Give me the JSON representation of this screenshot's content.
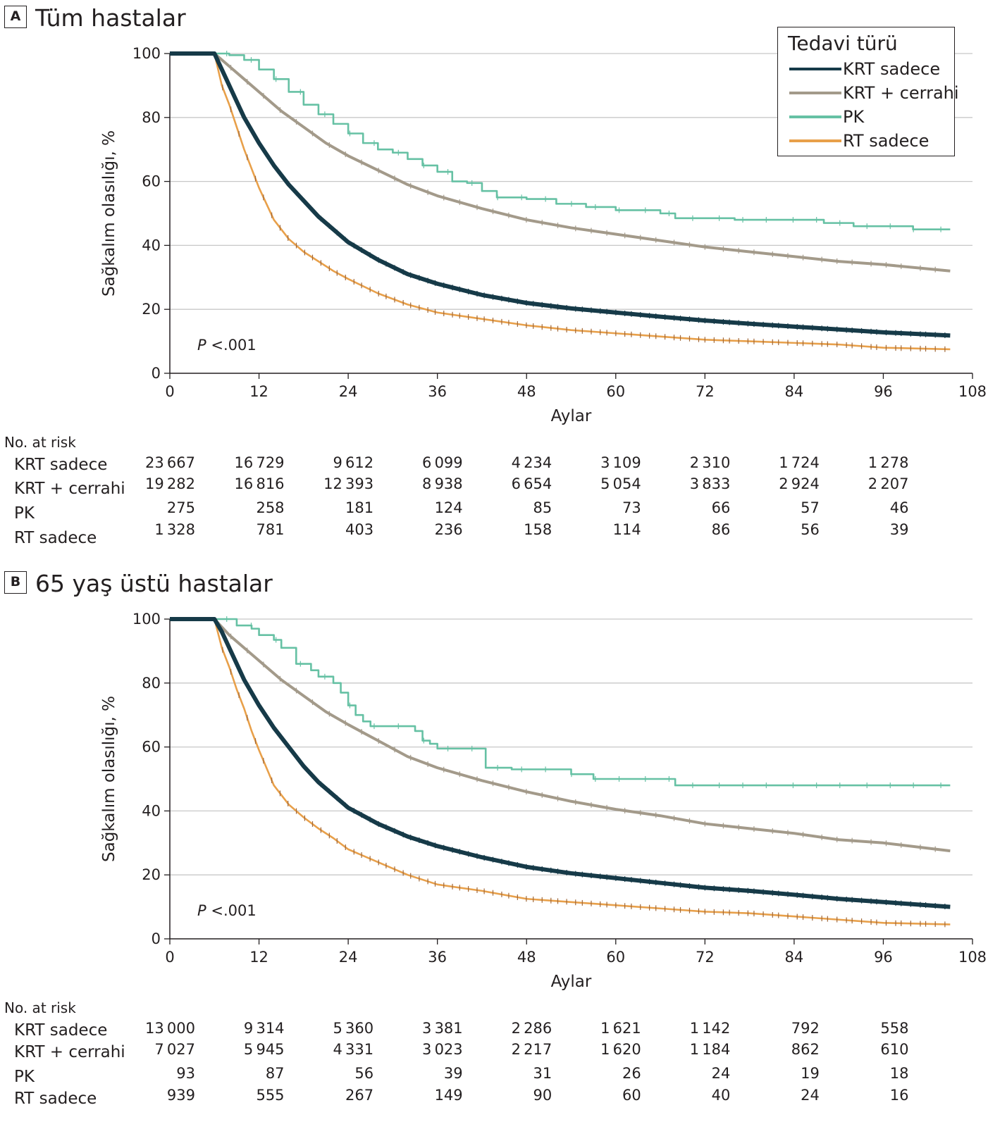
{
  "legend": {
    "title": "Tedavi türü",
    "items": [
      {
        "label": "KRT sadece",
        "color": "#163a48"
      },
      {
        "label": "KRT + cerrahi",
        "color": "#a39a8a"
      },
      {
        "label": "PK",
        "color": "#66c1a4"
      },
      {
        "label": "RT sadece",
        "color": "#e8a04a"
      }
    ]
  },
  "risk_table_title": "No. at risk",
  "chart_data": [
    {
      "type": "line",
      "panel_letter": "A",
      "title": "Tüm hastalar",
      "xlabel": "Aylar",
      "ylabel": "Sağkalım olasılığı, %",
      "xlim": [
        0,
        108
      ],
      "ylim": [
        0,
        100
      ],
      "xticks": [
        0,
        12,
        24,
        36,
        48,
        60,
        72,
        84,
        96,
        108
      ],
      "yticks": [
        0,
        20,
        40,
        60,
        80,
        100
      ],
      "grid": "horizontal",
      "legend_position": "top-right",
      "annotation": {
        "p_label": "P",
        "p_value": "<.001"
      },
      "series": [
        {
          "name": "KRT sadece",
          "color": "#163a48",
          "x": [
            0,
            6,
            7,
            8,
            9,
            10,
            12,
            14,
            16,
            18,
            20,
            24,
            28,
            32,
            36,
            42,
            48,
            54,
            60,
            66,
            72,
            78,
            84,
            90,
            96,
            105
          ],
          "y": [
            100,
            100,
            95,
            90,
            85,
            80,
            72,
            65,
            59,
            54,
            49,
            41,
            35.5,
            31,
            28,
            24.5,
            22,
            20.3,
            19,
            17.7,
            16.5,
            15.5,
            14.6,
            13.7,
            12.8,
            11.8
          ],
          "at_risk": [
            23667,
            16729,
            9612,
            6099,
            4234,
            3109,
            2310,
            1724,
            1278
          ]
        },
        {
          "name": "KRT + cerrahi",
          "color": "#a39a8a",
          "x": [
            0,
            6,
            8,
            10,
            12,
            15,
            18,
            21,
            24,
            28,
            32,
            36,
            42,
            48,
            54,
            60,
            66,
            72,
            78,
            84,
            90,
            96,
            105
          ],
          "y": [
            100,
            100,
            96,
            92,
            88,
            82,
            77,
            72,
            68,
            63.5,
            59,
            55.5,
            51.5,
            48,
            45.5,
            43.5,
            41.5,
            39.5,
            38,
            36.5,
            35,
            34,
            32
          ],
          "at_risk": [
            19282,
            16816,
            12393,
            8938,
            6654,
            5054,
            3833,
            2924,
            2207
          ]
        },
        {
          "name": "PK",
          "color": "#66c1a4",
          "x": [
            0,
            6,
            8,
            10,
            12,
            14,
            16,
            18,
            20,
            22,
            24,
            26,
            28,
            30,
            32,
            34,
            36,
            38,
            40,
            42,
            44,
            48,
            52,
            56,
            60,
            64,
            66,
            68,
            72,
            76,
            80,
            84,
            88,
            92,
            96,
            100,
            105
          ],
          "y": [
            100,
            100,
            99.5,
            98,
            95,
            92,
            88,
            84,
            81,
            78,
            75,
            72,
            70,
            69,
            67,
            65,
            63,
            60,
            59.5,
            57,
            55,
            54.5,
            53,
            52,
            51,
            51,
            50,
            48.5,
            48.5,
            48,
            48,
            48,
            47,
            46,
            46,
            45,
            45
          ],
          "at_risk": [
            275,
            258,
            181,
            124,
            85,
            73,
            66,
            57,
            46
          ]
        },
        {
          "name": "RT sadece",
          "color": "#e8a04a",
          "x": [
            0,
            6,
            7,
            8,
            9,
            10,
            11,
            12,
            14,
            16,
            18,
            20,
            22,
            24,
            28,
            32,
            36,
            42,
            48,
            54,
            60,
            66,
            72,
            78,
            84,
            90,
            96,
            105
          ],
          "y": [
            100,
            100,
            90,
            84,
            77,
            70,
            64,
            58,
            48,
            42,
            38,
            35,
            32,
            29.5,
            25,
            21.5,
            19,
            17,
            15,
            13.5,
            12.5,
            11.5,
            10.5,
            10,
            9.5,
            9,
            8,
            7.5
          ],
          "at_risk": [
            1328,
            781,
            403,
            236,
            158,
            114,
            86,
            56,
            39
          ]
        }
      ]
    },
    {
      "type": "line",
      "panel_letter": "B",
      "title": "65 yaş üstü hastalar",
      "xlabel": "Aylar",
      "ylabel": "Sağkalım olasılığı, %",
      "xlim": [
        0,
        108
      ],
      "ylim": [
        0,
        100
      ],
      "xticks": [
        0,
        12,
        24,
        36,
        48,
        60,
        72,
        84,
        96,
        108
      ],
      "yticks": [
        0,
        20,
        40,
        60,
        80,
        100
      ],
      "grid": "horizontal",
      "annotation": {
        "p_label": "P",
        "p_value": "<.001"
      },
      "series": [
        {
          "name": "KRT sadece",
          "color": "#163a48",
          "x": [
            0,
            6,
            7,
            8,
            9,
            10,
            12,
            14,
            16,
            18,
            20,
            24,
            28,
            32,
            36,
            42,
            48,
            54,
            60,
            66,
            72,
            78,
            84,
            90,
            96,
            105
          ],
          "y": [
            100,
            100,
            96,
            91,
            86,
            81,
            73,
            66,
            60,
            54,
            49,
            41,
            36,
            32,
            29,
            25.5,
            22.5,
            20.5,
            19,
            17.5,
            16,
            15,
            13.8,
            12.5,
            11.5,
            10
          ],
          "at_risk": [
            13000,
            9314,
            5360,
            3381,
            2286,
            1621,
            1142,
            792,
            558
          ]
        },
        {
          "name": "KRT + cerrahi",
          "color": "#a39a8a",
          "x": [
            0,
            6,
            8,
            10,
            12,
            15,
            18,
            21,
            24,
            28,
            32,
            36,
            42,
            48,
            54,
            60,
            66,
            72,
            78,
            84,
            90,
            96,
            105
          ],
          "y": [
            100,
            100,
            95,
            91,
            87,
            81,
            76,
            71,
            67,
            62,
            57,
            53.5,
            49.5,
            46,
            43,
            40.5,
            38.5,
            36,
            34.5,
            33,
            31,
            30,
            27.5
          ],
          "at_risk": [
            7027,
            5945,
            4331,
            3023,
            2217,
            1620,
            1184,
            862,
            610
          ]
        },
        {
          "name": "PK",
          "color": "#66c1a4",
          "x": [
            0,
            6,
            9,
            11,
            12,
            14,
            15,
            17,
            19,
            20,
            22,
            23,
            24,
            25,
            26,
            27,
            30,
            33,
            34,
            35,
            36,
            40,
            42,
            42.5,
            46,
            50,
            54,
            56,
            57,
            62,
            66,
            68,
            72,
            80,
            90,
            105
          ],
          "y": [
            100,
            100,
            98,
            97,
            95,
            93.5,
            91,
            86,
            84,
            82,
            80,
            77,
            73,
            70,
            68,
            66.5,
            66.5,
            65,
            62,
            61,
            59.5,
            59.5,
            59.5,
            53.5,
            53,
            53,
            51.5,
            51.5,
            50,
            50,
            50,
            48,
            48,
            48,
            48,
            48
          ],
          "at_risk": [
            93,
            87,
            56,
            39,
            31,
            26,
            24,
            19,
            18
          ]
        },
        {
          "name": "RT sadece",
          "color": "#e8a04a",
          "x": [
            0,
            6,
            7,
            8,
            9,
            10,
            11,
            12,
            14,
            16,
            18,
            20,
            22,
            24,
            28,
            32,
            36,
            42,
            48,
            54,
            60,
            66,
            72,
            78,
            84,
            90,
            96,
            105
          ],
          "y": [
            100,
            100,
            91,
            85,
            78,
            72,
            65,
            59,
            48,
            42,
            38,
            34.5,
            31.5,
            28,
            24,
            20,
            17,
            15,
            12.5,
            11.5,
            10.5,
            9.5,
            8.5,
            8,
            7,
            6,
            5,
            4.5
          ],
          "at_risk": [
            939,
            555,
            267,
            149,
            90,
            60,
            40,
            24,
            16
          ]
        }
      ]
    }
  ]
}
